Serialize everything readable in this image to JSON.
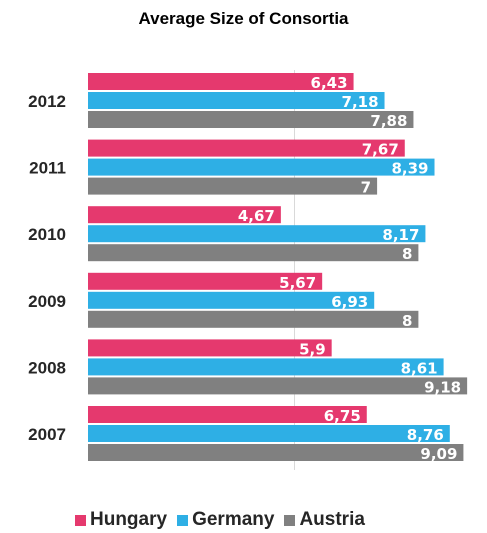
{
  "chart_data": {
    "type": "bar",
    "orientation": "horizontal",
    "title": "Average Size of Consortia",
    "xlabel": "",
    "ylabel": "",
    "xlim": [
      0,
      10
    ],
    "grid": false,
    "legend_position": "bottom",
    "categories": [
      "2012",
      "2011",
      "2010",
      "2009",
      "2008",
      "2007"
    ],
    "series": [
      {
        "name": "Hungary",
        "color": "#E5396E",
        "values": [
          6.43,
          7.67,
          4.67,
          5.67,
          5.9,
          6.75
        ],
        "labels": [
          "6,43",
          "7,67",
          "4,67",
          "5,67",
          "5,9",
          "6,75"
        ]
      },
      {
        "name": "Germany",
        "color": "#2EAFE5",
        "values": [
          7.18,
          8.39,
          8.17,
          6.93,
          8.61,
          8.76
        ],
        "labels": [
          "7,18",
          "8,39",
          "8,17",
          "6,93",
          "8,61",
          "8,76"
        ]
      },
      {
        "name": "Austria",
        "color": "#808080",
        "values": [
          7.88,
          7,
          8,
          8,
          9.18,
          9.09
        ],
        "labels": [
          "7,88",
          "7",
          "8",
          "8",
          "9,18",
          "9,09"
        ]
      }
    ]
  }
}
